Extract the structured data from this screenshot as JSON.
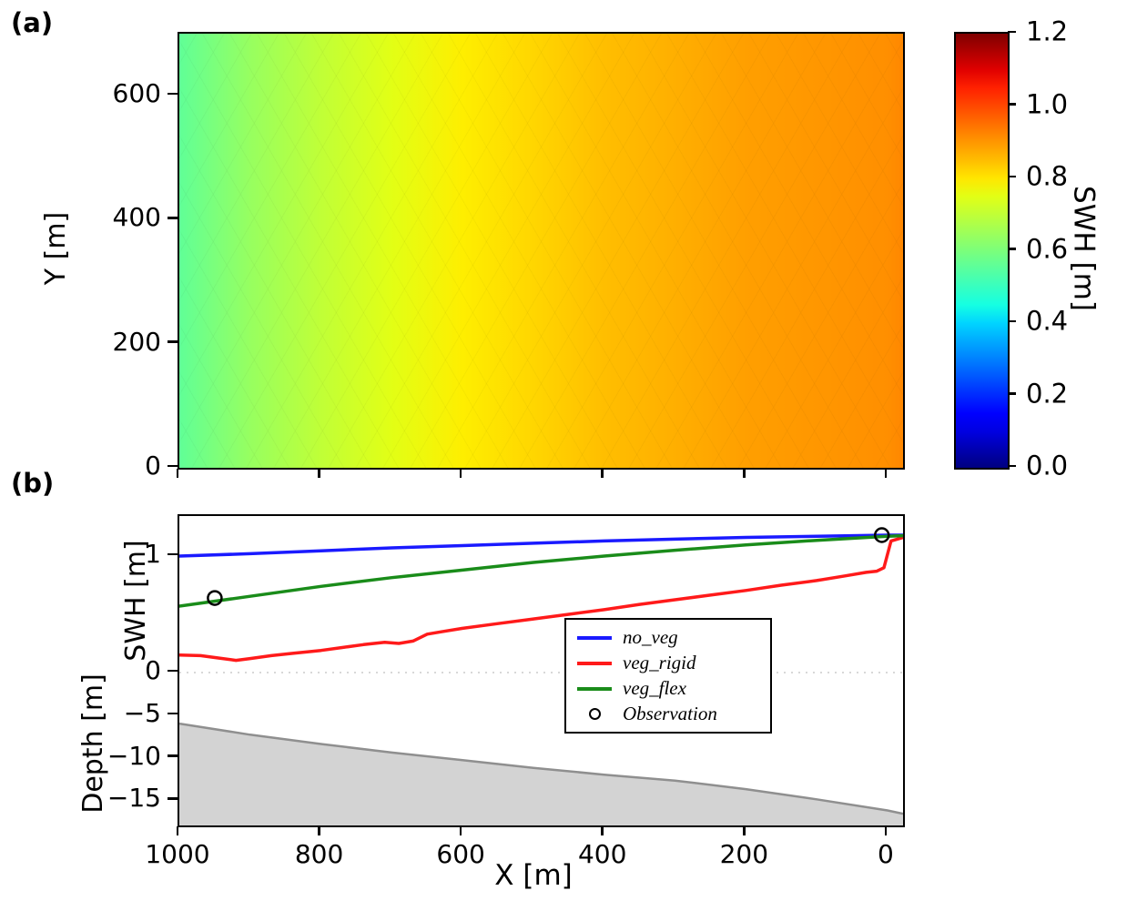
{
  "figure": {
    "panel_a_label": "(a)",
    "panel_b_label": "(b)",
    "background": "#ffffff"
  },
  "colors": {
    "no_veg": "#1a1aff",
    "veg_rigid": "#ff1a1a",
    "veg_flex": "#1a8c1a",
    "depth_fill": "#d3d3d3",
    "depth_line": "#8f8f8f",
    "zero_line": "#cccccc",
    "axis": "#000000"
  },
  "chart_data": [
    {
      "type": "heatmap",
      "panel": "a",
      "title": "",
      "xlabel": "",
      "ylabel": "Y [m]",
      "x_range": [
        1000,
        -22
      ],
      "y_range": [
        0,
        700
      ],
      "y_ticks": [
        {
          "v": 0,
          "label": "0"
        },
        {
          "v": 200,
          "label": "200"
        },
        {
          "v": 400,
          "label": "400"
        },
        {
          "v": 600,
          "label": "600"
        }
      ],
      "colormap": "jet",
      "colorbar": {
        "label": "SWH [m]",
        "range": [
          0.0,
          1.2
        ],
        "ticks": [
          {
            "v": 0.0,
            "label": "0.0"
          },
          {
            "v": 0.2,
            "label": "0.2"
          },
          {
            "v": 0.4,
            "label": "0.4"
          },
          {
            "v": 0.6,
            "label": "0.6"
          },
          {
            "v": 0.8,
            "label": "0.8"
          },
          {
            "v": 1.0,
            "label": "1.0"
          },
          {
            "v": 1.2,
            "label": "1.2"
          }
        ]
      },
      "swh_profile": {
        "x": [
          1000,
          900,
          800,
          700,
          600,
          500,
          400,
          300,
          200,
          100,
          0,
          -22
        ],
        "swh": [
          0.56,
          0.64,
          0.7,
          0.75,
          0.79,
          0.82,
          0.85,
          0.87,
          0.89,
          0.9,
          0.91,
          0.92
        ]
      }
    },
    {
      "type": "line",
      "panel": "b",
      "xlabel": "X [m]",
      "ylabel_upper": "SWH [m]",
      "ylabel_lower": "Depth [m]",
      "x_range": [
        1000,
        -22
      ],
      "x_ticks": [
        {
          "v": 1000,
          "label": "1000"
        },
        {
          "v": 800,
          "label": "800"
        },
        {
          "v": 600,
          "label": "600"
        },
        {
          "v": 400,
          "label": "400"
        },
        {
          "v": 200,
          "label": "200"
        },
        {
          "v": 0,
          "label": "0"
        }
      ],
      "swh_axis": {
        "ticks": [
          {
            "v": 1,
            "label": "1"
          },
          {
            "v": 0,
            "label": "0"
          }
        ]
      },
      "depth_axis": {
        "ticks": [
          {
            "v": -5,
            "label": "−5"
          },
          {
            "v": -10,
            "label": "−10"
          },
          {
            "v": -15,
            "label": "−15"
          }
        ]
      },
      "series": [
        {
          "name": "no_veg",
          "color": "#1a1aff",
          "x": [
            1000,
            900,
            800,
            700,
            600,
            500,
            400,
            300,
            200,
            100,
            0,
            -22
          ],
          "y": [
            1.0,
            1.02,
            1.045,
            1.07,
            1.09,
            1.11,
            1.13,
            1.145,
            1.16,
            1.17,
            1.18,
            1.18
          ]
        },
        {
          "name": "veg_rigid",
          "color": "#ff1a1a",
          "x": [
            1000,
            970,
            945,
            920,
            900,
            870,
            840,
            800,
            770,
            740,
            710,
            690,
            670,
            650,
            630,
            600,
            550,
            500,
            450,
            400,
            350,
            300,
            250,
            200,
            150,
            100,
            60,
            30,
            15,
            5,
            -5,
            -22
          ],
          "y": [
            0.15,
            0.145,
            0.125,
            0.105,
            0.12,
            0.145,
            0.165,
            0.19,
            0.215,
            0.24,
            0.26,
            0.25,
            0.27,
            0.33,
            0.35,
            0.38,
            0.42,
            0.46,
            0.5,
            0.54,
            0.585,
            0.625,
            0.665,
            0.705,
            0.75,
            0.79,
            0.83,
            0.86,
            0.87,
            0.9,
            1.13,
            1.16
          ]
        },
        {
          "name": "veg_flex",
          "color": "#1a8c1a",
          "x": [
            1000,
            900,
            800,
            700,
            600,
            500,
            400,
            300,
            200,
            100,
            0,
            -22
          ],
          "y": [
            0.57,
            0.655,
            0.74,
            0.815,
            0.88,
            0.945,
            1.0,
            1.05,
            1.095,
            1.135,
            1.17,
            1.175
          ]
        }
      ],
      "observations": {
        "label": "Observation",
        "points": [
          {
            "x": 950,
            "y": 0.64
          },
          {
            "x": 8,
            "y": 1.18
          }
        ]
      },
      "depth_profile": {
        "x": [
          1000,
          900,
          800,
          700,
          600,
          500,
          400,
          300,
          200,
          100,
          0,
          -22
        ],
        "depth": [
          -6.0,
          -7.3,
          -8.4,
          -9.4,
          -10.3,
          -11.2,
          -12.0,
          -12.7,
          -13.7,
          -14.9,
          -16.2,
          -16.6
        ]
      },
      "legend": [
        {
          "label": "no_veg",
          "swatch": "line",
          "color": "#1a1aff"
        },
        {
          "label": "veg_rigid",
          "swatch": "line",
          "color": "#ff1a1a"
        },
        {
          "label": "veg_flex",
          "swatch": "line",
          "color": "#1a8c1a"
        },
        {
          "label": "Observation",
          "swatch": "circle",
          "color": "#000000"
        }
      ]
    }
  ]
}
